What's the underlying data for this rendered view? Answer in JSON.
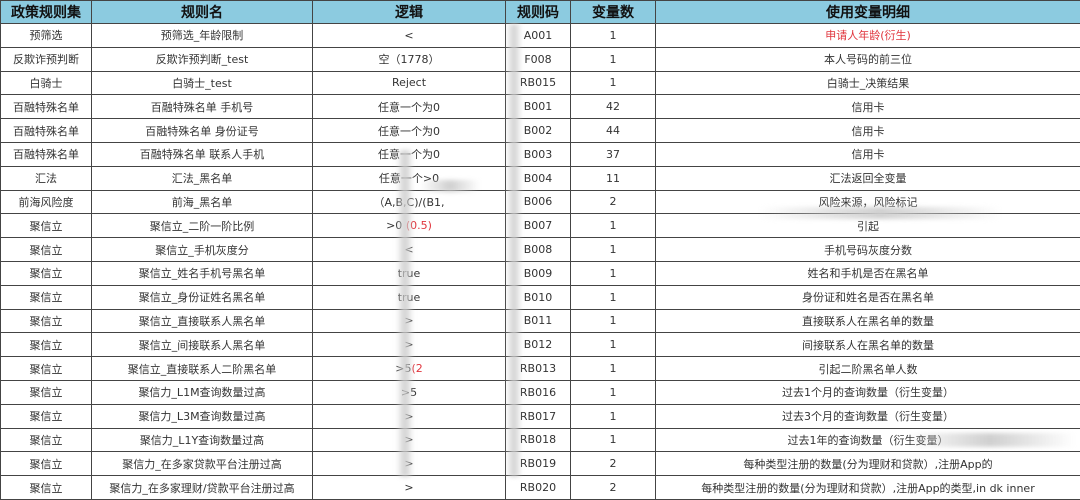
{
  "headers": [
    "政策规则集",
    "规则名",
    "逻辑",
    "规则码",
    "变量数",
    "使用变量明细"
  ],
  "rows": [
    {
      "set": "预筛选",
      "name": "预筛选_年龄限制",
      "logic": "<",
      "logic_red": "",
      "code": "A001",
      "count": "1",
      "detail": "申请人年龄(衍生)",
      "detail_red": true
    },
    {
      "set": "反欺诈预判断",
      "name": "反欺诈预判断_test",
      "logic": "空（1778）",
      "logic_red": "",
      "code": "F008",
      "count": "1",
      "detail": "本人号码的前三位",
      "detail_red": false
    },
    {
      "set": "白骑士",
      "name": "白骑士_test",
      "logic": "Reject",
      "logic_red": "",
      "code": "RB015",
      "count": "1",
      "detail": "白骑士_决策结果",
      "detail_red": false
    },
    {
      "set": "百融特殊名单",
      "name": "百融特殊名单 手机号",
      "logic": "任意一个为0",
      "logic_red": "",
      "code": "B001",
      "count": "42",
      "detail": "信用卡",
      "detail_red": false
    },
    {
      "set": "百融特殊名单",
      "name": "百融特殊名单 身份证号",
      "logic": "任意一个为0",
      "logic_red": "",
      "code": "B002",
      "count": "44",
      "detail": "信用卡",
      "detail_red": false
    },
    {
      "set": "百融特殊名单",
      "name": "百融特殊名单 联系人手机",
      "logic": "任意一个为0",
      "logic_red": "",
      "code": "B003",
      "count": "37",
      "detail": "信用卡",
      "detail_red": false
    },
    {
      "set": "汇法",
      "name": "汇法_黑名单",
      "logic": "任意一个>0",
      "logic_red": "",
      "code": "B004",
      "count": "11",
      "detail": "汇法返回全变量",
      "detail_red": false
    },
    {
      "set": "前海风险度",
      "name": "前海_黑名单",
      "logic": "（A,B,C)/(B1,",
      "logic_red": "",
      "code": "B006",
      "count": "2",
      "detail": "风险来源，风险标记",
      "detail_red": false
    },
    {
      "set": "聚信立",
      "name": "聚信立_二阶一阶比例",
      "logic": ">0 ",
      "logic_red": "(0.5)",
      "code": "B007",
      "count": "1",
      "detail": "引起",
      "detail_red": false
    },
    {
      "set": "聚信立",
      "name": "聚信立_手机灰度分",
      "logic": "<",
      "logic_red": "",
      "code": "B008",
      "count": "1",
      "detail": "手机号码灰度分数",
      "detail_red": false
    },
    {
      "set": "聚信立",
      "name": "聚信立_姓名手机号黑名单",
      "logic": "true",
      "logic_red": "",
      "code": "B009",
      "count": "1",
      "detail": "姓名和手机是否在黑名单",
      "detail_red": false
    },
    {
      "set": "聚信立",
      "name": "聚信立_身份证姓名黑名单",
      "logic": "true",
      "logic_red": "",
      "code": "B010",
      "count": "1",
      "detail": "身份证和姓名是否在黑名单",
      "detail_red": false
    },
    {
      "set": "聚信立",
      "name": "聚信立_直接联系人黑名单",
      "logic": ">",
      "logic_red": "",
      "code": "B011",
      "count": "1",
      "detail": "直接联系人在黑名单的数量",
      "detail_red": false
    },
    {
      "set": "聚信立",
      "name": "聚信立_间接联系人黑名单",
      "logic": ">",
      "logic_red": "",
      "code": "B012",
      "count": "1",
      "detail": "间接联系人在黑名单的数量",
      "detail_red": false
    },
    {
      "set": "聚信立",
      "name": "聚信立_直接联系人二阶黑名单",
      "logic": ">5",
      "logic_red": "(2",
      "code": "RB013",
      "count": "1",
      "detail": "引起二阶黑名单人数",
      "detail_red": false
    },
    {
      "set": "聚信立",
      "name": "聚信力_L1M查询数量过高",
      "logic": ">5",
      "logic_red": "",
      "code": "RB016",
      "count": "1",
      "detail": "过去1个月的查询数量（衍生变量）",
      "detail_red": false
    },
    {
      "set": "聚信立",
      "name": "聚信力_L3M查询数量过高",
      "logic": ">",
      "logic_red": "",
      "code": "RB017",
      "count": "1",
      "detail": "过去3个月的查询数量（衍生变量）",
      "detail_red": false
    },
    {
      "set": "聚信立",
      "name": "聚信力_L1Y查询数量过高",
      "logic": ">",
      "logic_red": "",
      "code": "RB018",
      "count": "1",
      "detail": "过去1年的查询数量（衍生变量）",
      "detail_red": false
    },
    {
      "set": "聚信立",
      "name": "聚信力_在多家贷款平台注册过高",
      "logic": ">",
      "logic_red": "",
      "code": "RB019",
      "count": "2",
      "detail": "每种类型注册的数量(分为理财和贷款）,注册App的",
      "detail_red": false
    },
    {
      "set": "聚信立",
      "name": "聚信力_在多家理财/贷款平台注册过高",
      "logic": ">",
      "logic_red": "",
      "code": "RB020",
      "count": "2",
      "detail": "每种类型注册的数量(分为理财和贷款）,注册App的类型,in        dk inner",
      "detail_red": false
    }
  ],
  "colors": {
    "header_bg": "#8ccbe0",
    "highlight": "#e0343c"
  }
}
